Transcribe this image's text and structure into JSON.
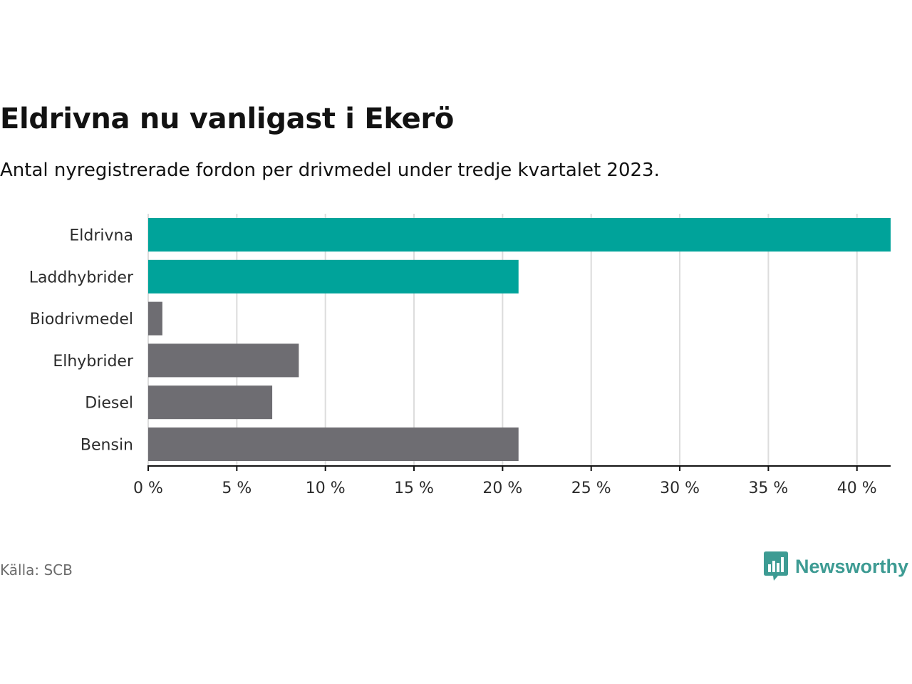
{
  "header": {
    "title": "Eldrivna nu vanligast i Ekerö",
    "subtitle": "Antal nyregistrerade fordon per drivmedel under tredje kvartalet 2023."
  },
  "footer": {
    "source": "Källa: SCB",
    "brand": "Newsworthy"
  },
  "colors": {
    "highlight": "#00a39a",
    "neutral": "#6e6d72",
    "grid": "#dcdcdc",
    "axis": "#121212"
  },
  "chart_data": {
    "type": "bar",
    "orientation": "horizontal",
    "title": "Eldrivna nu vanligast i Ekerö",
    "subtitle": "Antal nyregistrerade fordon per drivmedel under tredje kvartalet 2023.",
    "xlabel": "",
    "ylabel": "",
    "categories": [
      "Eldrivna",
      "Laddhybrider",
      "Biodrivmedel",
      "Elhybrider",
      "Diesel",
      "Bensin"
    ],
    "values": [
      41.9,
      20.9,
      0.8,
      8.5,
      7.0,
      20.9
    ],
    "highlighted": [
      true,
      true,
      false,
      false,
      false,
      false
    ],
    "xlim": [
      0,
      41.9
    ],
    "xticks": [
      0,
      5,
      10,
      15,
      20,
      25,
      30,
      35,
      40
    ],
    "xtick_labels": [
      "0 %",
      "5 %",
      "10 %",
      "15 %",
      "20 %",
      "25 %",
      "30 %",
      "35 %",
      "40 %"
    ],
    "grid": true
  }
}
